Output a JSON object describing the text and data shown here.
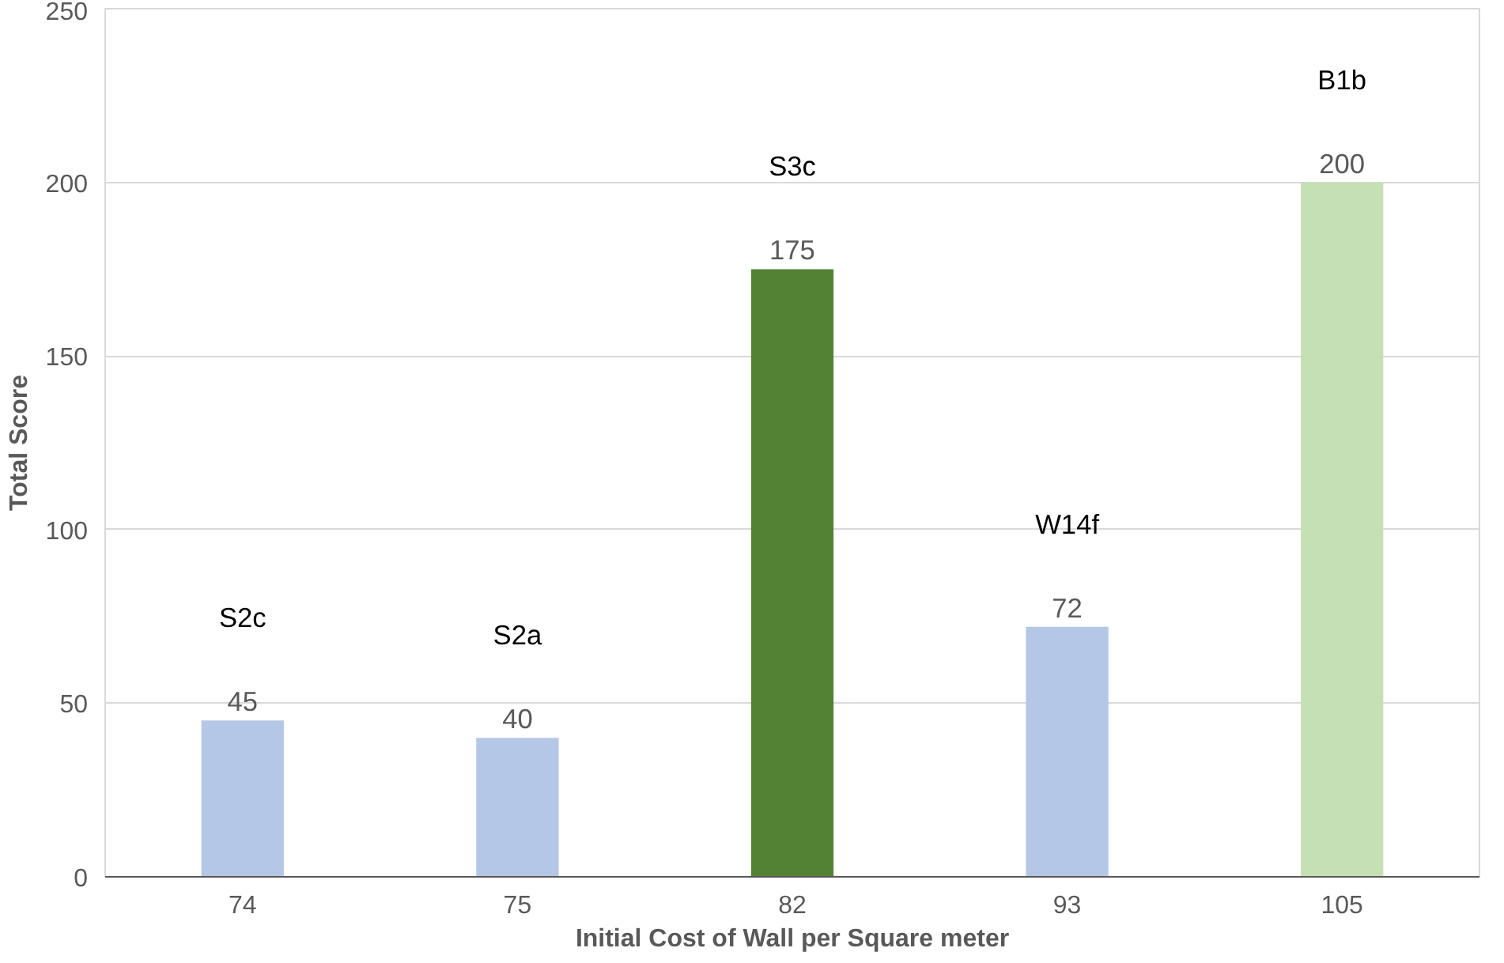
{
  "chart_data": {
    "type": "bar",
    "xlabel": "Initial Cost of Wall per Square meter",
    "ylabel": "Total Score",
    "categories": [
      "74",
      "75",
      "82",
      "93",
      "105"
    ],
    "values": [
      45,
      40,
      175,
      72,
      200
    ],
    "colors": [
      "#b4c7e7",
      "#b4c7e7",
      "#548235",
      "#b4c7e7",
      "#c5e0b4"
    ],
    "ylim": [
      0,
      250
    ],
    "yticks": [
      0,
      50,
      100,
      150,
      200,
      250
    ],
    "grid": "y",
    "data_labels": true,
    "annotations": [
      "S2c",
      "S2a",
      "S3c",
      "W14f",
      "B1b"
    ]
  }
}
